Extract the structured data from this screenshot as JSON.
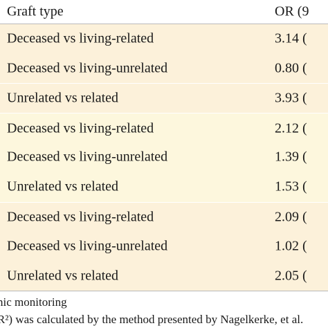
{
  "table": {
    "header": [
      "Graft type",
      "OR (9"
    ],
    "rows": [
      [
        "Deceased vs living-related",
        "3.14 ("
      ],
      [
        "Deceased vs living-unrelated",
        "0.80 ("
      ],
      [
        "Unrelated vs related",
        "3.93 ("
      ],
      [
        "Deceased vs living-related",
        "2.12 ("
      ],
      [
        "Deceased vs living-unrelated",
        "1.39 ("
      ],
      [
        "Unrelated vs related",
        "1.53 ("
      ],
      [
        "Deceased vs living-related",
        "2.09 ("
      ],
      [
        "Deceased vs living-unrelated",
        "1.02 ("
      ],
      [
        "Unrelated vs related",
        "2.05 ("
      ]
    ]
  },
  "footnotes": [
    "nic monitoring",
    "R²) was calculated by the method presented by Nagelkerke, et al."
  ]
}
